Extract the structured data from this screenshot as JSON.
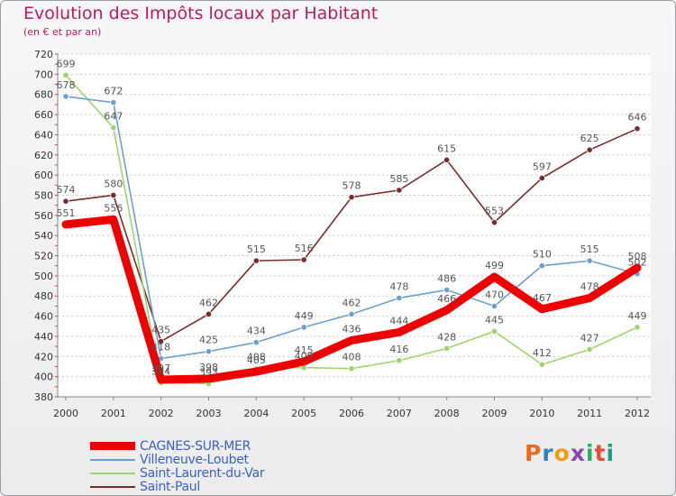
{
  "title": "Evolution des Impôts locaux par Habitant",
  "subtitle": "(en € et par an)",
  "logo": {
    "text": "Proxiti",
    "colors": [
      "#e86a1a",
      "#2e86c1",
      "#f39c12",
      "#8e44ad",
      "#27ae60",
      "#e74c3c",
      "#16a085"
    ]
  },
  "chart_data": {
    "type": "line",
    "title": "Evolution des Impôts locaux par Habitant",
    "subtitle": "(en € et par an)",
    "xlabel": "",
    "ylabel": "",
    "x": [
      "2000",
      "2001",
      "2002",
      "2003",
      "2004",
      "2005",
      "2006",
      "2007",
      "2008",
      "2009",
      "2010",
      "2011",
      "2012"
    ],
    "ylim": [
      380,
      720
    ],
    "yticks": [
      380,
      400,
      420,
      440,
      460,
      480,
      500,
      520,
      540,
      560,
      580,
      600,
      620,
      640,
      660,
      680,
      700,
      720
    ],
    "grid": "horizontal dashed",
    "legend_position": "bottom-left",
    "series": [
      {
        "name": "CAGNES-SUR-MER",
        "color": "#ee0000",
        "values": [
          551,
          556,
          397,
          398,
          405,
          415,
          436,
          444,
          466,
          499,
          467,
          478,
          508
        ],
        "labels": [
          "551",
          "556",
          "397",
          "398",
          "405",
          "415",
          "436",
          "444",
          "466",
          "499",
          "467",
          "478",
          "508"
        ]
      },
      {
        "name": "Villeneuve-Loubet",
        "color": "#6a9fd4",
        "values": [
          678,
          672,
          418,
          425,
          434,
          449,
          462,
          478,
          486,
          470,
          510,
          515,
          502
        ],
        "labels": [
          "678",
          "672",
          "418",
          "425",
          "434",
          "449",
          "462",
          "478",
          "486",
          "470",
          "510",
          "515",
          "502"
        ]
      },
      {
        "name": "Saint-Laurent-du-Var",
        "color": "#9ad66a",
        "values": [
          699,
          647,
          394,
          393,
          408,
          409,
          408,
          416,
          428,
          445,
          412,
          427,
          449
        ],
        "labels": [
          "699",
          "647",
          "394",
          "393",
          "408",
          "409",
          "408",
          "416",
          "428",
          "445",
          "412",
          "427",
          "449"
        ]
      },
      {
        "name": "Saint-Paul",
        "color": "#7b2a2a",
        "values": [
          574,
          580,
          435,
          462,
          515,
          516,
          578,
          585,
          615,
          553,
          597,
          625,
          646
        ],
        "labels": [
          "574",
          "580",
          "435",
          "462",
          "515",
          "516",
          "578",
          "585",
          "615",
          "553",
          "597",
          "625",
          "646"
        ]
      }
    ]
  }
}
